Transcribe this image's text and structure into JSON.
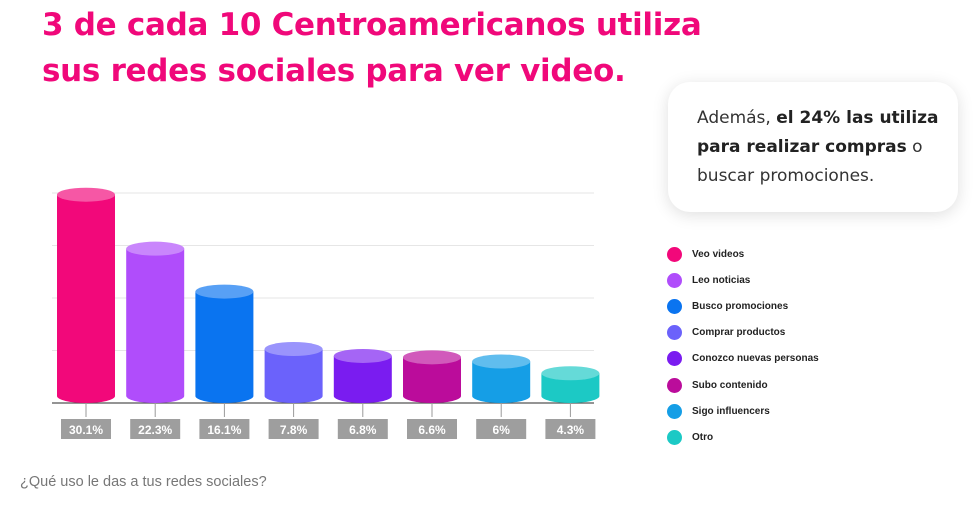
{
  "title": "3 de cada 10 Centroamericanos utiliza sus redes sociales para ver video.",
  "callout": {
    "prefix": "Además, ",
    "bold": "el 24% las utiliza para realizar compras",
    "suffix": " o buscar promociones."
  },
  "footer": "¿Qué uso le das a tus redes sociales?",
  "chart_data": {
    "type": "bar",
    "title": "",
    "xlabel": "",
    "ylabel": "",
    "ylim": [
      0,
      35
    ],
    "grid": true,
    "legend_position": "right",
    "categories": [
      "Veo videos",
      "Leo noticias",
      "Busco promociones",
      "Comprar productos",
      "Conozco nuevas personas",
      "Subo contenido",
      "Sigo influencers",
      "Otro"
    ],
    "values": [
      30.1,
      22.3,
      16.1,
      7.8,
      6.8,
      6.6,
      6,
      4.3
    ],
    "value_labels": [
      "30.1%",
      "22.3%",
      "16.1%",
      "7.8%",
      "6.8%",
      "6.6%",
      "6%",
      "4.3%"
    ],
    "colors": [
      "#f2087a",
      "#b04dfb",
      "#0a74f0",
      "#6b62fb",
      "#7a1cf0",
      "#bb0c9b",
      "#159ee6",
      "#1cc9c5"
    ]
  }
}
